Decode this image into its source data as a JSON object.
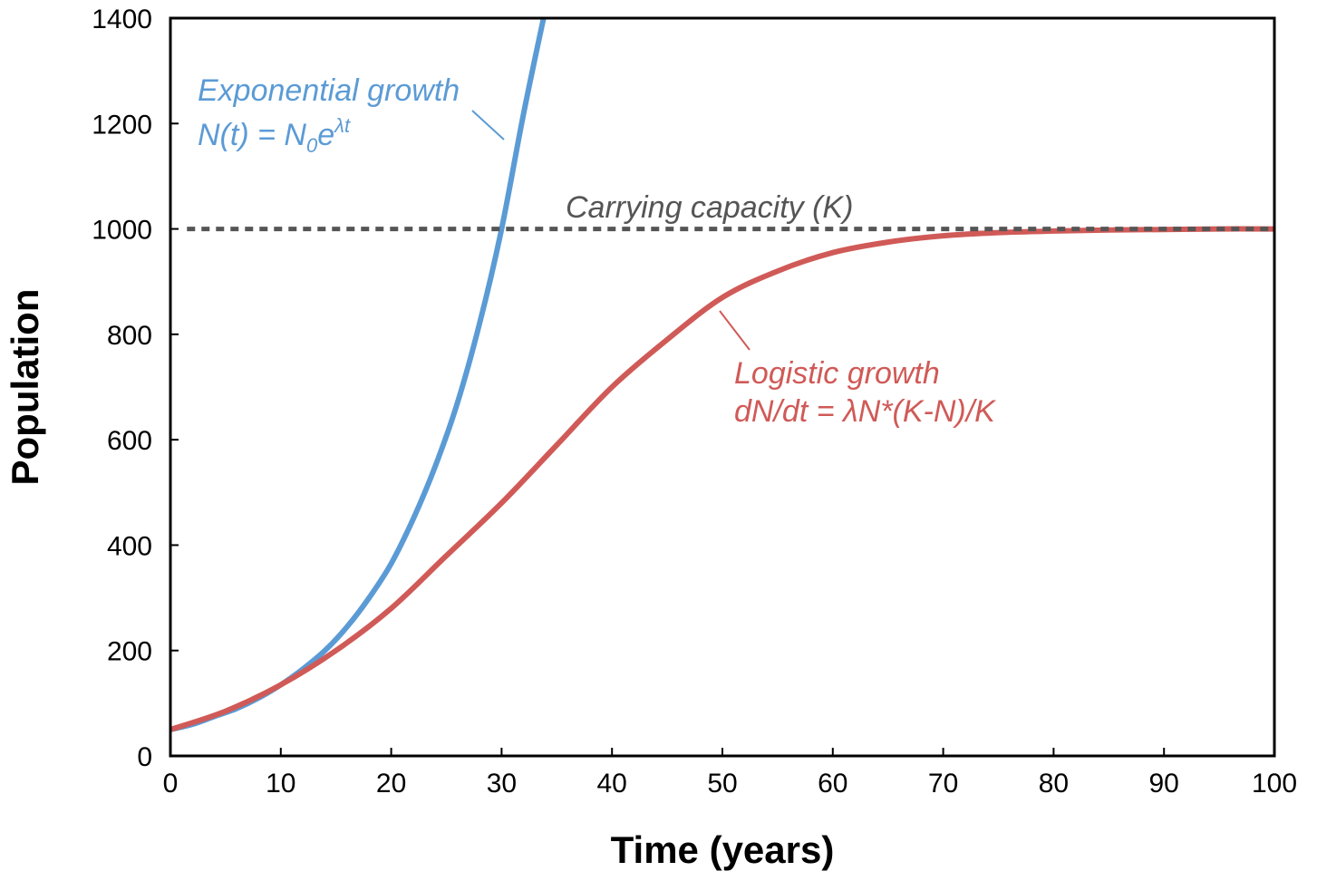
{
  "chart_data": {
    "type": "line",
    "xlabel": "Time (years)",
    "ylabel": "Population",
    "xlim": [
      0,
      100
    ],
    "ylim": [
      0,
      1400
    ],
    "xticks": [
      0,
      10,
      20,
      30,
      40,
      50,
      60,
      70,
      80,
      90,
      100
    ],
    "yticks": [
      0,
      200,
      400,
      600,
      800,
      1000,
      1200,
      1400
    ],
    "grid": false,
    "legend": "none",
    "series": [
      {
        "key": "exponential",
        "color": "#5b9bd5",
        "x": [
          0,
          2,
          4,
          6,
          8,
          10,
          12,
          14,
          16,
          18,
          20,
          22,
          24,
          26,
          28,
          30,
          32,
          33.8
        ],
        "y": [
          50,
          60,
          75,
          90,
          110,
          135,
          165,
          200,
          245,
          300,
          365,
          450,
          550,
          670,
          820,
          1000,
          1220,
          1400
        ]
      },
      {
        "key": "logistic",
        "color": "#d05a57",
        "x": [
          0,
          5,
          10,
          15,
          20,
          25,
          30,
          35,
          40,
          45,
          50,
          55,
          60,
          65,
          70,
          75,
          80,
          85,
          90,
          95,
          100
        ],
        "y": [
          50,
          85,
          135,
          200,
          280,
          380,
          480,
          590,
          700,
          790,
          870,
          920,
          955,
          975,
          987,
          993,
          996,
          998,
          999,
          1000,
          1000
        ]
      },
      {
        "key": "capacity",
        "color": "#555555",
        "dashed": true,
        "x": [
          1.5,
          100
        ],
        "y": [
          1000,
          1000
        ]
      }
    ],
    "annotations": {
      "exponential": {
        "color": "#5b9bd5",
        "line1": "Exponential growth",
        "formula_lhs": "N(t) = N",
        "formula_sub": "0",
        "formula_base": "e",
        "formula_sup": "λt"
      },
      "logistic": {
        "color": "#d05a57",
        "line1": "Logistic growth",
        "line2": "dN/dt = λN*(K-N)/K"
      },
      "capacity": {
        "color": "#555555",
        "label": "Carrying capacity (K)"
      }
    }
  }
}
